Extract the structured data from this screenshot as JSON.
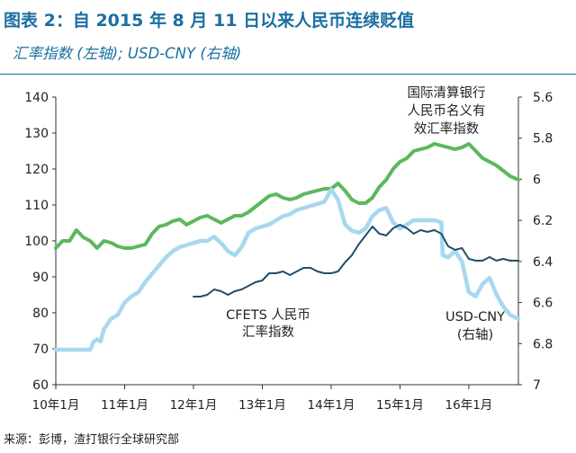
{
  "header": {
    "title": "图表 2：自 2015 年 8 月 11 日以来人民币连续贬值",
    "subtitle": "汇率指数 (左轴); USD-CNY (右轴)"
  },
  "footer": {
    "source": "来源：彭博，渣打银行全球研究部"
  },
  "colors": {
    "green": "#5cb85c",
    "lightblue": "#a8d8f0",
    "navy": "#1f4e6b",
    "axis": "#333333",
    "title": "#1a6fa0"
  },
  "chart_data": {
    "type": "line",
    "title": "图表 2：自 2015 年 8 月 11 日以来人民币连续贬值",
    "subtitle": "汇率指数 (左轴); USD-CNY (右轴)",
    "x_range": [
      2010.0,
      2016.72
    ],
    "x_ticks": [
      {
        "value": 2010.0,
        "label": "10年1月"
      },
      {
        "value": 2011.0,
        "label": "11年1月"
      },
      {
        "value": 2012.0,
        "label": "12年1月"
      },
      {
        "value": 2013.0,
        "label": "13年1月"
      },
      {
        "value": 2014.0,
        "label": "14年1月"
      },
      {
        "value": 2015.0,
        "label": "15年1月"
      },
      {
        "value": 2016.0,
        "label": "16年1月"
      }
    ],
    "left_axis": {
      "ylim": [
        60,
        140
      ],
      "ticks": [
        140,
        130,
        120,
        110,
        100,
        90,
        80,
        70,
        60
      ],
      "tick_labels": [
        "140",
        "130",
        "120",
        "110",
        "100",
        "90",
        "80",
        "70",
        "60"
      ]
    },
    "right_axis": {
      "ylim": [
        5.6,
        7.0
      ],
      "inverted": true,
      "ticks": [
        5.6,
        5.8,
        6.0,
        6.2,
        6.4,
        6.6,
        6.8,
        7.0
      ],
      "tick_labels": [
        "5.6",
        "5.8",
        "6",
        "6.2",
        "6.4",
        "6.6",
        "6.8",
        "7"
      ]
    },
    "series": [
      {
        "name": "国际清算银行人民币名义有效汇率指数",
        "axis": "left",
        "color_key": "green",
        "x": [
          2010.0,
          2010.1,
          2010.2,
          2010.3,
          2010.4,
          2010.5,
          2010.6,
          2010.7,
          2010.8,
          2010.9,
          2011.0,
          2011.1,
          2011.2,
          2011.3,
          2011.4,
          2011.5,
          2011.6,
          2011.7,
          2011.8,
          2011.9,
          2012.0,
          2012.1,
          2012.2,
          2012.3,
          2012.4,
          2012.5,
          2012.6,
          2012.7,
          2012.8,
          2012.9,
          2013.0,
          2013.1,
          2013.2,
          2013.3,
          2013.4,
          2013.5,
          2013.6,
          2013.7,
          2013.8,
          2013.9,
          2014.0,
          2014.1,
          2014.2,
          2014.3,
          2014.4,
          2014.5,
          2014.6,
          2014.7,
          2014.8,
          2014.9,
          2015.0,
          2015.1,
          2015.2,
          2015.3,
          2015.4,
          2015.5,
          2015.6,
          2015.7,
          2015.8,
          2015.9,
          2016.0,
          2016.1,
          2016.2,
          2016.3,
          2016.4,
          2016.5,
          2016.6,
          2016.72
        ],
        "values": [
          98,
          100,
          100,
          103,
          101,
          100,
          98,
          100,
          99.5,
          98.5,
          98,
          98,
          98.5,
          99,
          102,
          104,
          104.5,
          105.5,
          106,
          104.5,
          105.5,
          106.5,
          107,
          106,
          105,
          106,
          107,
          107,
          108,
          109.5,
          111,
          112.5,
          113,
          112,
          111.5,
          112,
          113,
          113.5,
          114,
          114.5,
          114.5,
          116,
          114,
          111.5,
          110.5,
          110.5,
          112,
          115,
          117,
          120,
          122,
          123,
          125,
          125.5,
          126,
          127,
          126.5,
          126,
          125.5,
          126,
          127,
          125,
          123,
          122,
          121,
          119.5,
          118,
          117
        ]
      },
      {
        "name": "USD-CNY",
        "axis": "right",
        "color_key": "lightblue",
        "x": [
          2010.0,
          2010.1,
          2010.2,
          2010.3,
          2010.4,
          2010.5,
          2010.55,
          2010.6,
          2010.65,
          2010.7,
          2010.8,
          2010.9,
          2011.0,
          2011.1,
          2011.2,
          2011.3,
          2011.4,
          2011.5,
          2011.6,
          2011.7,
          2011.8,
          2011.9,
          2012.0,
          2012.1,
          2012.2,
          2012.3,
          2012.4,
          2012.5,
          2012.6,
          2012.7,
          2012.8,
          2012.9,
          2013.0,
          2013.1,
          2013.2,
          2013.3,
          2013.4,
          2013.5,
          2013.6,
          2013.7,
          2013.8,
          2013.9,
          2014.0,
          2014.1,
          2014.2,
          2014.3,
          2014.4,
          2014.5,
          2014.6,
          2014.7,
          2014.8,
          2014.9,
          2015.0,
          2015.1,
          2015.2,
          2015.3,
          2015.4,
          2015.5,
          2015.6,
          2015.62,
          2015.7,
          2015.8,
          2015.9,
          2016.0,
          2016.1,
          2016.2,
          2016.3,
          2016.4,
          2016.5,
          2016.6,
          2016.72
        ],
        "values": [
          6.83,
          6.83,
          6.83,
          6.83,
          6.83,
          6.83,
          6.79,
          6.78,
          6.79,
          6.73,
          6.68,
          6.66,
          6.6,
          6.57,
          6.55,
          6.5,
          6.46,
          6.42,
          6.38,
          6.35,
          6.33,
          6.32,
          6.31,
          6.3,
          6.3,
          6.28,
          6.31,
          6.35,
          6.37,
          6.33,
          6.26,
          6.24,
          6.23,
          6.22,
          6.2,
          6.18,
          6.17,
          6.15,
          6.14,
          6.13,
          6.12,
          6.11,
          6.05,
          6.1,
          6.22,
          6.25,
          6.26,
          6.24,
          6.18,
          6.15,
          6.14,
          6.21,
          6.24,
          6.22,
          6.2,
          6.2,
          6.2,
          6.2,
          6.21,
          6.37,
          6.38,
          6.35,
          6.4,
          6.55,
          6.57,
          6.51,
          6.48,
          6.56,
          6.62,
          6.66,
          6.68
        ]
      },
      {
        "name": "CFETS 人民币汇率指数",
        "axis": "left",
        "color_key": "navy",
        "x": [
          2012.0,
          2012.1,
          2012.2,
          2012.3,
          2012.4,
          2012.5,
          2012.6,
          2012.7,
          2012.8,
          2012.9,
          2013.0,
          2013.1,
          2013.2,
          2013.3,
          2013.4,
          2013.5,
          2013.6,
          2013.7,
          2013.8,
          2013.9,
          2014.0,
          2014.1,
          2014.2,
          2014.3,
          2014.4,
          2014.5,
          2014.6,
          2014.7,
          2014.8,
          2014.9,
          2015.0,
          2015.1,
          2015.2,
          2015.3,
          2015.4,
          2015.5,
          2015.6,
          2015.7,
          2015.8,
          2015.9,
          2016.0,
          2016.1,
          2016.2,
          2016.3,
          2016.4,
          2016.5,
          2016.6,
          2016.72
        ],
        "values": [
          84.5,
          84.5,
          85,
          86.5,
          86,
          85,
          86,
          86.5,
          87.5,
          88.5,
          89,
          91,
          91,
          91.5,
          90.5,
          91.5,
          92.5,
          92.5,
          91.5,
          91,
          91,
          91.5,
          94,
          96,
          99,
          101.5,
          104,
          102,
          101.5,
          103.5,
          104.5,
          103.5,
          102,
          103,
          102.5,
          103,
          102,
          98.5,
          97.5,
          98,
          95,
          94.5,
          94.5,
          95.5,
          94.5,
          95,
          94.5,
          94.5
        ]
      }
    ],
    "annotations": [
      {
        "target": "green",
        "lines": [
          "国际清算银行",
          "人民币名义有",
          "效汇率指数"
        ]
      },
      {
        "target": "navy",
        "lines": [
          "CFETS 人民币",
          "汇率指数"
        ]
      },
      {
        "target": "lightblue",
        "lines": [
          "USD-CNY",
          "(右轴)"
        ]
      }
    ]
  }
}
